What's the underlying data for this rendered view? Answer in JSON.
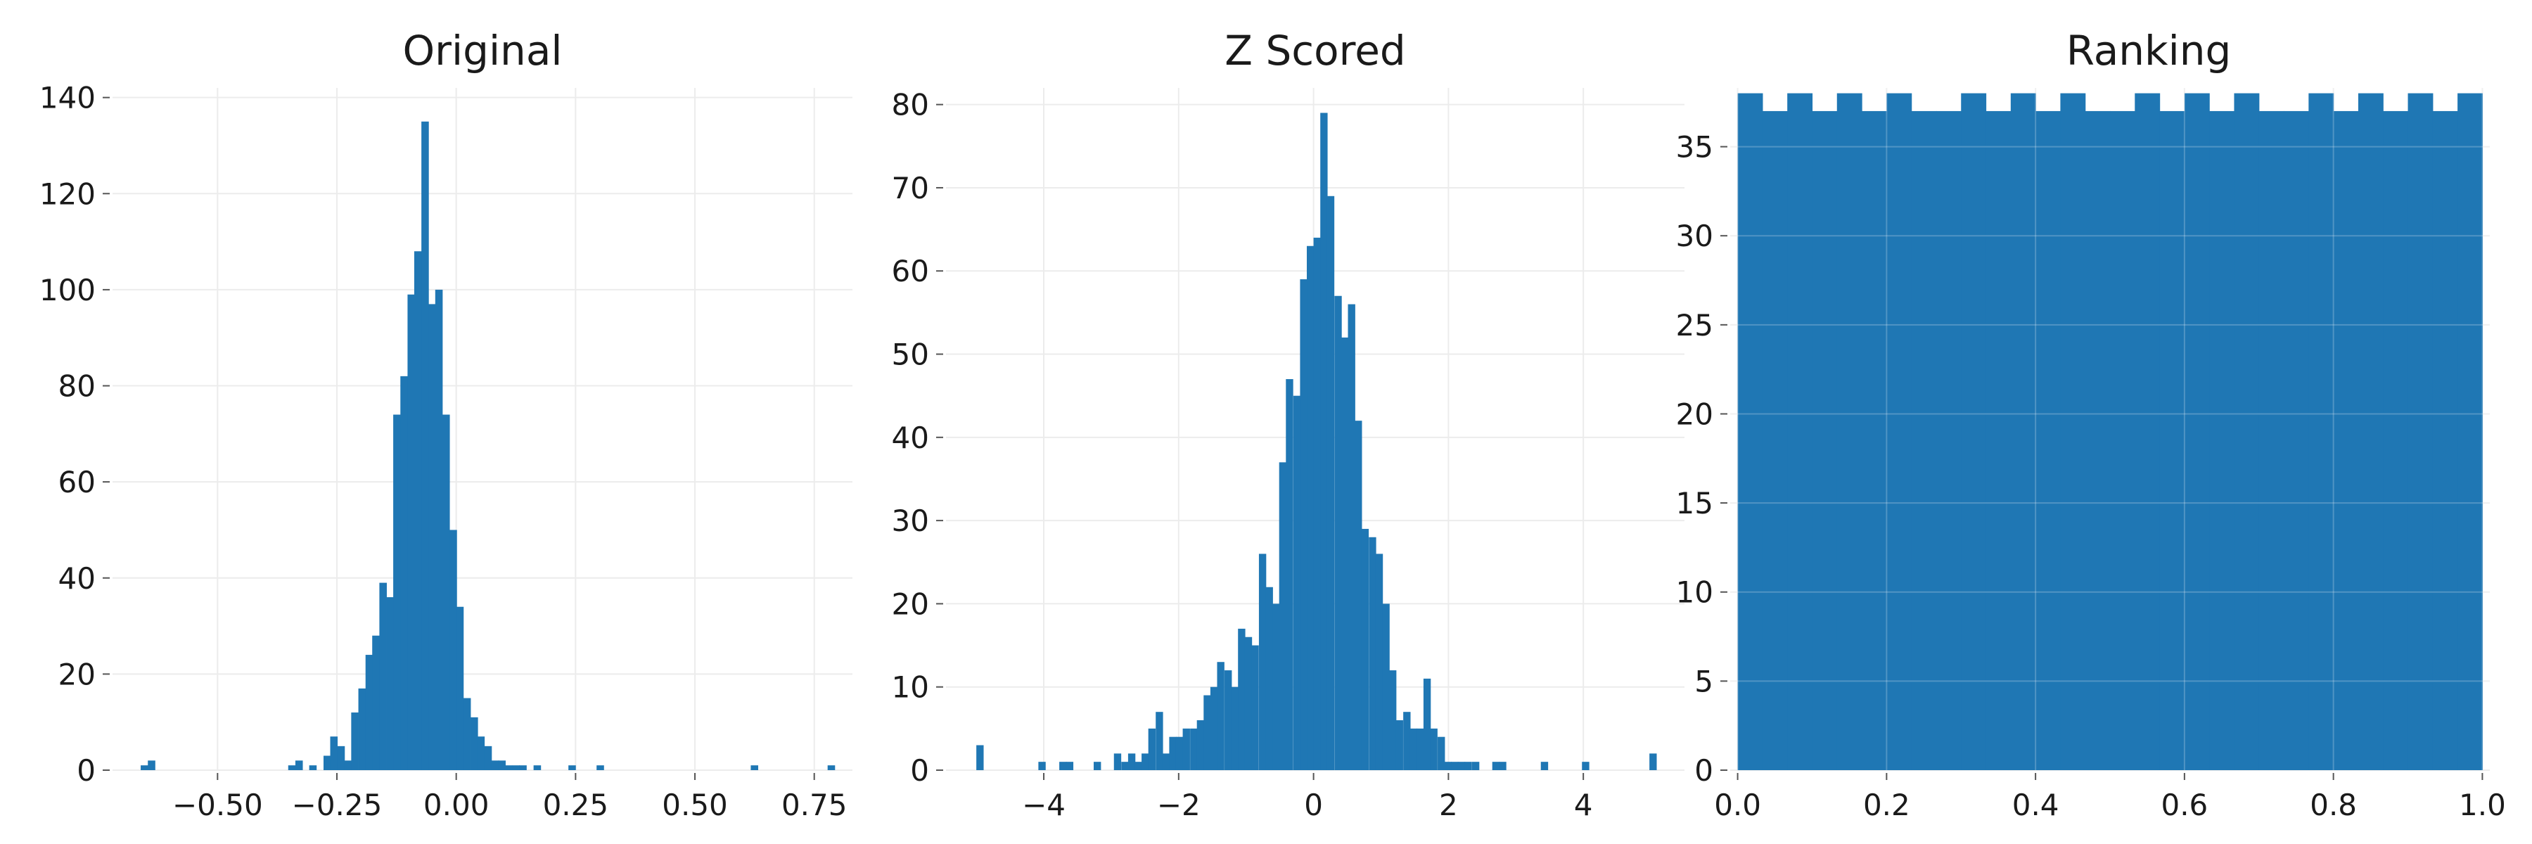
{
  "chart_data": [
    {
      "type": "bar",
      "title": "Original",
      "xlabel": "",
      "ylabel": "",
      "xlim": [
        -0.72,
        0.83
      ],
      "ylim": [
        0,
        142
      ],
      "grid": true,
      "bar_color": "#1f77b4",
      "bin_width": 0.0147,
      "x_ticks": [
        -0.5,
        -0.25,
        0.0,
        0.25,
        0.5,
        0.75
      ],
      "x_tick_labels": [
        "−0.50",
        "−0.25",
        "0.00",
        "0.25",
        "0.50",
        "0.75"
      ],
      "y_ticks": [
        0,
        20,
        40,
        60,
        80,
        100,
        120,
        140
      ],
      "y_tick_labels": [
        "0",
        "20",
        "40",
        "60",
        "80",
        "100",
        "120",
        "140"
      ],
      "bins": [
        {
          "x": -0.661,
          "y": 1
        },
        {
          "x": -0.646,
          "y": 2
        },
        {
          "x": -0.352,
          "y": 1
        },
        {
          "x": -0.337,
          "y": 2
        },
        {
          "x": -0.308,
          "y": 1
        },
        {
          "x": -0.278,
          "y": 3
        },
        {
          "x": -0.264,
          "y": 7
        },
        {
          "x": -0.249,
          "y": 5
        },
        {
          "x": -0.234,
          "y": 2
        },
        {
          "x": -0.22,
          "y": 12
        },
        {
          "x": -0.205,
          "y": 17
        },
        {
          "x": -0.19,
          "y": 24
        },
        {
          "x": -0.176,
          "y": 28
        },
        {
          "x": -0.161,
          "y": 39
        },
        {
          "x": -0.146,
          "y": 36
        },
        {
          "x": -0.132,
          "y": 74
        },
        {
          "x": -0.117,
          "y": 82
        },
        {
          "x": -0.102,
          "y": 99
        },
        {
          "x": -0.088,
          "y": 108
        },
        {
          "x": -0.073,
          "y": 135
        },
        {
          "x": -0.058,
          "y": 97
        },
        {
          "x": -0.044,
          "y": 100
        },
        {
          "x": -0.029,
          "y": 74
        },
        {
          "x": -0.014,
          "y": 50
        },
        {
          "x": 0.0,
          "y": 34
        },
        {
          "x": 0.015,
          "y": 15
        },
        {
          "x": 0.03,
          "y": 11
        },
        {
          "x": 0.044,
          "y": 7
        },
        {
          "x": 0.059,
          "y": 5
        },
        {
          "x": 0.074,
          "y": 2
        },
        {
          "x": 0.088,
          "y": 2
        },
        {
          "x": 0.103,
          "y": 1
        },
        {
          "x": 0.118,
          "y": 1
        },
        {
          "x": 0.132,
          "y": 1
        },
        {
          "x": 0.162,
          "y": 1
        },
        {
          "x": 0.235,
          "y": 1
        },
        {
          "x": 0.294,
          "y": 1
        },
        {
          "x": 0.617,
          "y": 1
        },
        {
          "x": 0.778,
          "y": 1
        }
      ]
    },
    {
      "type": "bar",
      "title": "Z Scored",
      "xlabel": "",
      "ylabel": "",
      "xlim": [
        -5.45,
        5.5
      ],
      "ylim": [
        0,
        82
      ],
      "grid": true,
      "bar_color": "#1f77b4",
      "bin_width": 0.102,
      "x_ticks": [
        -4,
        -2,
        0,
        2,
        4
      ],
      "x_tick_labels": [
        "−4",
        "−2",
        "0",
        "2",
        "4"
      ],
      "y_ticks": [
        0,
        10,
        20,
        30,
        40,
        50,
        60,
        70,
        80
      ],
      "y_tick_labels": [
        "0",
        "10",
        "20",
        "30",
        "40",
        "50",
        "60",
        "70",
        "80"
      ],
      "bins": [
        {
          "x": -5.0,
          "y": 3
        },
        {
          "x": -4.08,
          "y": 1
        },
        {
          "x": -3.77,
          "y": 1
        },
        {
          "x": -3.67,
          "y": 1
        },
        {
          "x": -3.26,
          "y": 1
        },
        {
          "x": -2.96,
          "y": 2
        },
        {
          "x": -2.85,
          "y": 1
        },
        {
          "x": -2.75,
          "y": 2
        },
        {
          "x": -2.65,
          "y": 1
        },
        {
          "x": -2.55,
          "y": 2
        },
        {
          "x": -2.45,
          "y": 5
        },
        {
          "x": -2.34,
          "y": 7
        },
        {
          "x": -2.24,
          "y": 2
        },
        {
          "x": -2.14,
          "y": 4
        },
        {
          "x": -2.04,
          "y": 4
        },
        {
          "x": -1.94,
          "y": 5
        },
        {
          "x": -1.83,
          "y": 5
        },
        {
          "x": -1.73,
          "y": 6
        },
        {
          "x": -1.63,
          "y": 9
        },
        {
          "x": -1.53,
          "y": 10
        },
        {
          "x": -1.43,
          "y": 13
        },
        {
          "x": -1.32,
          "y": 12
        },
        {
          "x": -1.22,
          "y": 10
        },
        {
          "x": -1.12,
          "y": 17
        },
        {
          "x": -1.02,
          "y": 16
        },
        {
          "x": -0.92,
          "y": 15
        },
        {
          "x": -0.81,
          "y": 26
        },
        {
          "x": -0.71,
          "y": 22
        },
        {
          "x": -0.61,
          "y": 20
        },
        {
          "x": -0.51,
          "y": 37
        },
        {
          "x": -0.41,
          "y": 47
        },
        {
          "x": -0.3,
          "y": 45
        },
        {
          "x": -0.2,
          "y": 59
        },
        {
          "x": -0.1,
          "y": 63
        },
        {
          "x": 0.0,
          "y": 64
        },
        {
          "x": 0.1,
          "y": 79
        },
        {
          "x": 0.2,
          "y": 69
        },
        {
          "x": 0.31,
          "y": 57
        },
        {
          "x": 0.41,
          "y": 52
        },
        {
          "x": 0.51,
          "y": 56
        },
        {
          "x": 0.61,
          "y": 42
        },
        {
          "x": 0.71,
          "y": 29
        },
        {
          "x": 0.82,
          "y": 28
        },
        {
          "x": 0.92,
          "y": 26
        },
        {
          "x": 1.02,
          "y": 20
        },
        {
          "x": 1.12,
          "y": 12
        },
        {
          "x": 1.22,
          "y": 6
        },
        {
          "x": 1.33,
          "y": 7
        },
        {
          "x": 1.43,
          "y": 5
        },
        {
          "x": 1.53,
          "y": 5
        },
        {
          "x": 1.63,
          "y": 11
        },
        {
          "x": 1.73,
          "y": 5
        },
        {
          "x": 1.84,
          "y": 4
        },
        {
          "x": 1.94,
          "y": 1
        },
        {
          "x": 2.04,
          "y": 1
        },
        {
          "x": 2.14,
          "y": 1
        },
        {
          "x": 2.24,
          "y": 1
        },
        {
          "x": 2.35,
          "y": 1
        },
        {
          "x": 2.65,
          "y": 1
        },
        {
          "x": 2.75,
          "y": 1
        },
        {
          "x": 3.37,
          "y": 1
        },
        {
          "x": 3.98,
          "y": 1
        },
        {
          "x": 4.98,
          "y": 2
        }
      ]
    },
    {
      "type": "bar",
      "title": "Ranking",
      "xlabel": "",
      "ylabel": "",
      "xlim": [
        -0.01,
        1.01
      ],
      "ylim": [
        0,
        38.3
      ],
      "grid": true,
      "bar_color": "#1f77b4",
      "bin_start": 0.0,
      "bin_width": 0.0333333,
      "x_ticks": [
        0.0,
        0.2,
        0.4,
        0.6,
        0.8,
        1.0
      ],
      "x_tick_labels": [
        "0.0",
        "0.2",
        "0.4",
        "0.6",
        "0.8",
        "1.0"
      ],
      "y_ticks": [
        0,
        5,
        10,
        15,
        20,
        25,
        30,
        35
      ],
      "y_tick_labels": [
        "0",
        "5",
        "10",
        "15",
        "20",
        "25",
        "30",
        "35"
      ],
      "counts": [
        38,
        37,
        38,
        37,
        38,
        37,
        38,
        37,
        37,
        38,
        37,
        38,
        37,
        38,
        37,
        37,
        38,
        37,
        38,
        37,
        38,
        37,
        37,
        38,
        37,
        38,
        37,
        38,
        37,
        38
      ]
    }
  ]
}
